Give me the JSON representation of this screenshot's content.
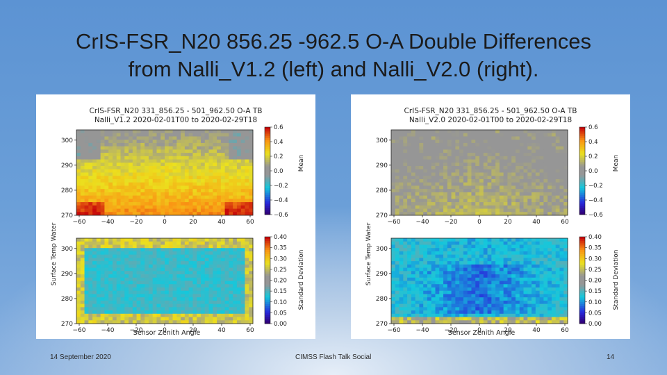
{
  "slide": {
    "title_line1": "CrIS-FSR_N20 856.25 -962.5 O-A Double Differences",
    "title_line2": "from Nalli_V1.2 (left) and Nalli_V2.0 (right).",
    "footer_date": "14 September 2020",
    "footer_center": "CIMSS Flash Talk Social",
    "page_number": "14"
  },
  "figures": [
    {
      "title_line1": "CrIS-FSR_N20 331_856.25 - 501_962.50 O-A TB",
      "title_line2": "Nalli_V1.2 2020-02-01T00 to 2020-02-29T18",
      "ylabel": "Surface Temp Water",
      "xlabel": "Sensor Zenith Angle",
      "x_ticks": [
        "−60",
        "−40",
        "−20",
        "0",
        "20",
        "40",
        "60"
      ],
      "y_ticks": [
        "270",
        "280",
        "290",
        "300"
      ],
      "mean_cbar_label": "Mean",
      "mean_cbar_ticks": [
        "0.6",
        "0.4",
        "0.2",
        "0.0",
        "−0.2",
        "−0.4",
        "−0.6"
      ],
      "std_cbar_label": "Standard Deviation",
      "std_cbar_ticks": [
        "0.40",
        "0.35",
        "0.30",
        "0.25",
        "0.20",
        "0.15",
        "0.10",
        "0.05",
        "0.00"
      ],
      "version": "v1"
    },
    {
      "title_line1": "CrIS-FSR_N20 331_856.25 - 501_962.50 O-A TB",
      "title_line2": "Nalli_V2.0 2020-02-01T00 to 2020-02-29T18",
      "ylabel": "Surface Temp Water",
      "xlabel": "Sensor Zenith Angle",
      "x_ticks": [
        "−60",
        "−40",
        "−20",
        "0",
        "20",
        "40",
        "60"
      ],
      "y_ticks": [
        "270",
        "280",
        "290",
        "300"
      ],
      "mean_cbar_label": "Mean",
      "mean_cbar_ticks": [
        "0.6",
        "0.4",
        "0.2",
        "0.0",
        "−0.2",
        "−0.4",
        "−0.6"
      ],
      "std_cbar_label": "Standard Deviation",
      "std_cbar_ticks": [
        "0.40",
        "0.35",
        "0.30",
        "0.25",
        "0.20",
        "0.15",
        "0.10",
        "0.05",
        "0.00"
      ],
      "version": "v2"
    }
  ],
  "colors": {
    "text": "#1b1b1b",
    "panel_bg": "#ffffff"
  }
}
